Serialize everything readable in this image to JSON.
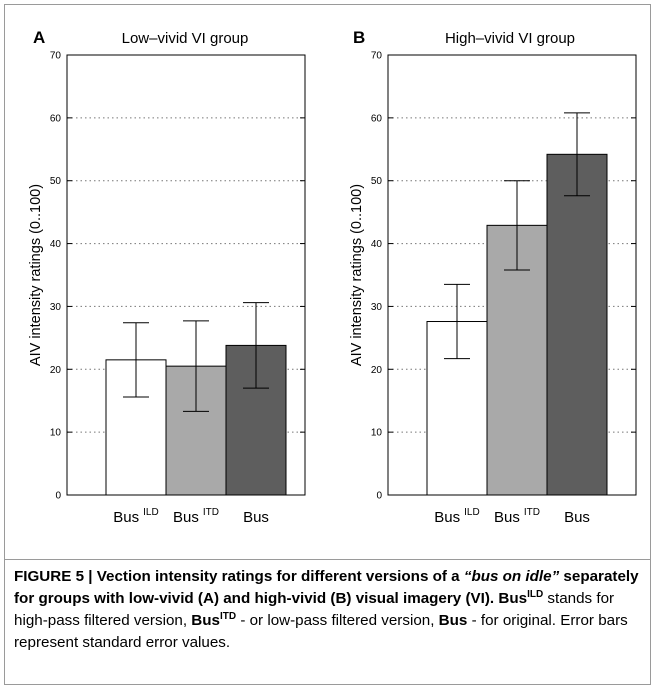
{
  "chart_data": [
    {
      "type": "bar",
      "panel_label": "A",
      "title": "Low–vivid VI group",
      "ylabel": "AIV intensity ratings (0..100)",
      "xlabel": "",
      "ylim": [
        0,
        70
      ],
      "yticks": [
        0,
        10,
        20,
        30,
        40,
        50,
        60,
        70
      ],
      "grid": "horizontal dotted",
      "categories": [
        {
          "base": "Bus",
          "sup": "ILD"
        },
        {
          "base": "Bus",
          "sup": "ITD"
        },
        {
          "base": "Bus",
          "sup": ""
        }
      ],
      "values": [
        21.5,
        20.5,
        23.8
      ],
      "error": [
        5.9,
        7.2,
        6.8
      ],
      "colors": [
        "#ffffff",
        "#a9a9a9",
        "#5e5e5e"
      ]
    },
    {
      "type": "bar",
      "panel_label": "B",
      "title": "High–vivid VI group",
      "ylabel": "AIV intensity ratings (0..100)",
      "xlabel": "",
      "ylim": [
        0,
        70
      ],
      "yticks": [
        0,
        10,
        20,
        30,
        40,
        50,
        60,
        70
      ],
      "grid": "horizontal dotted",
      "categories": [
        {
          "base": "Bus",
          "sup": "ILD"
        },
        {
          "base": "Bus",
          "sup": "ITD"
        },
        {
          "base": "Bus",
          "sup": ""
        }
      ],
      "values": [
        27.6,
        42.9,
        54.2
      ],
      "error": [
        5.9,
        7.1,
        6.6
      ],
      "colors": [
        "#ffffff",
        "#a9a9a9",
        "#5e5e5e"
      ]
    }
  ],
  "caption": [
    {
      "t": "FIGURE 5 | Vection intensity ratings for different versions of a ",
      "b": true
    },
    {
      "t": "“bus on idle”",
      "b": true,
      "i": true
    },
    {
      "t": " separately for groups with low-vivid (A) and high-vivid (B) visual imagery (VI). ",
      "b": true
    },
    {
      "t": "Bus",
      "b": true
    },
    {
      "t": "ILD",
      "b": true,
      "sup": true
    },
    {
      "t": " stands for high-pass filtered version, "
    },
    {
      "t": "Bus",
      "b": true
    },
    {
      "t": "ITD",
      "b": true,
      "sup": true
    },
    {
      "t": " - or low-pass filtered version, "
    },
    {
      "t": "Bus",
      "b": true
    },
    {
      "t": " - for original. Error bars represent standard error values."
    }
  ]
}
